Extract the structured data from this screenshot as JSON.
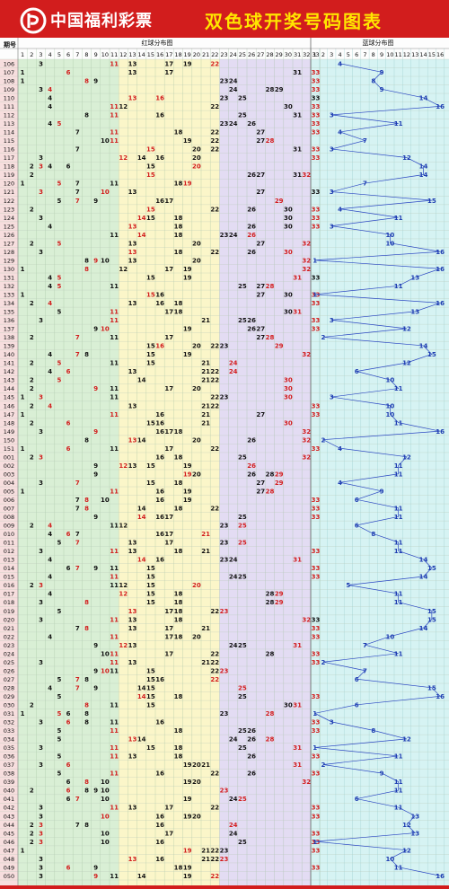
{
  "header": {
    "org_name": "中国福利彩票",
    "title": "双色球开奖号码图表"
  },
  "table": {
    "period_header": "期号",
    "red_zone_title": "红球分布图",
    "blue_zone_title": "蓝球分布图",
    "red_columns": [
      "1",
      "2",
      "3",
      "4",
      "5",
      "6",
      "7",
      "8",
      "9",
      "10",
      "11",
      "12",
      "13",
      "14",
      "15",
      "16",
      "17",
      "18",
      "19",
      "20",
      "21",
      "22",
      "23",
      "24",
      "25",
      "26",
      "27",
      "28",
      "29",
      "30",
      "31",
      "32",
      "33"
    ],
    "blue_columns": [
      "1",
      "2",
      "3",
      "4",
      "5",
      "6",
      "7",
      "8",
      "9",
      "10",
      "11",
      "12",
      "13",
      "14",
      "15",
      "16"
    ],
    "rows": [
      {
        "p": "106",
        "red": [
          3,
          11,
          13,
          17,
          19,
          22
        ],
        "blue": 4
      },
      {
        "p": "107",
        "red": [
          1,
          6,
          13,
          17,
          31,
          33
        ],
        "blue": 9
      },
      {
        "p": "108",
        "red": [
          1,
          8,
          9,
          23,
          24,
          33
        ],
        "blue": 8
      },
      {
        "p": "109",
        "red": [
          3,
          4,
          24,
          28,
          29,
          33
        ],
        "blue": 9
      },
      {
        "p": "110",
        "red": [
          4,
          13,
          23,
          25,
          33,
          16
        ],
        "blue": 14
      },
      {
        "p": "111",
        "red": [
          4,
          11,
          12,
          22,
          30,
          33
        ],
        "blue": 16
      },
      {
        "p": "112",
        "red": [
          8,
          11,
          16,
          25,
          31,
          33
        ],
        "blue": 3
      },
      {
        "p": "113",
        "red": [
          4,
          5,
          23,
          24,
          26,
          33
        ],
        "blue": 11
      },
      {
        "p": "114",
        "red": [
          7,
          11,
          18,
          22,
          27,
          33
        ],
        "blue": 4
      },
      {
        "p": "115",
        "red": [
          10,
          11,
          19,
          22,
          27,
          28
        ],
        "blue": 7
      },
      {
        "p": "116",
        "red": [
          7,
          15,
          20,
          22,
          31,
          33
        ],
        "blue": 3
      },
      {
        "p": "117",
        "red": [
          3,
          12,
          14,
          16,
          20,
          33
        ],
        "blue": 12
      },
      {
        "p": "118",
        "red": [
          2,
          3,
          4,
          6,
          15,
          20
        ],
        "blue": 14
      },
      {
        "p": "119",
        "red": [
          2,
          15,
          26,
          27,
          31,
          32
        ],
        "blue": 14
      },
      {
        "p": "120",
        "red": [
          1,
          5,
          7,
          11,
          18,
          19
        ],
        "blue": 7
      },
      {
        "p": "121",
        "red": [
          7,
          10,
          13,
          27,
          33,
          3
        ],
        "blue": 3
      },
      {
        "p": "122",
        "red": [
          5,
          7,
          9,
          16,
          17,
          29
        ],
        "blue": 15
      },
      {
        "p": "123",
        "red": [
          2,
          15,
          22,
          26,
          30,
          33
        ],
        "blue": 4
      },
      {
        "p": "124",
        "red": [
          3,
          14,
          15,
          18,
          30,
          33
        ],
        "blue": 11
      },
      {
        "p": "125",
        "red": [
          4,
          13,
          18,
          26,
          30,
          33
        ],
        "blue": 3
      },
      {
        "p": "126",
        "red": [
          11,
          14,
          18,
          23,
          24,
          26
        ],
        "blue": 10
      },
      {
        "p": "127",
        "red": [
          2,
          5,
          13,
          20,
          27,
          32
        ],
        "blue": 10
      },
      {
        "p": "128",
        "red": [
          3,
          13,
          18,
          22,
          26,
          30
        ],
        "blue": 16
      },
      {
        "p": "129",
        "red": [
          8,
          9,
          10,
          13,
          20,
          32
        ],
        "blue": 1
      },
      {
        "p": "130",
        "red": [
          1,
          8,
          12,
          17,
          19,
          32
        ],
        "blue": 16
      },
      {
        "p": "131",
        "red": [
          4,
          5,
          15,
          19,
          33,
          31
        ],
        "blue": 13
      },
      {
        "p": "132",
        "red": [
          4,
          5,
          11,
          25,
          27,
          28
        ],
        "blue": 11
      },
      {
        "p": "133",
        "red": [
          1,
          15,
          16,
          27,
          30,
          33
        ],
        "blue": 1
      },
      {
        "p": "134",
        "red": [
          2,
          4,
          13,
          16,
          18,
          33
        ],
        "blue": 16
      },
      {
        "p": "135",
        "red": [
          5,
          11,
          17,
          18,
          30,
          31
        ],
        "blue": 13
      },
      {
        "p": "136",
        "red": [
          3,
          11,
          21,
          25,
          26,
          33
        ],
        "blue": 3
      },
      {
        "p": "137",
        "red": [
          9,
          10,
          19,
          26,
          27,
          33
        ],
        "blue": 12
      },
      {
        "p": "138",
        "red": [
          2,
          7,
          11,
          17,
          27,
          28
        ],
        "blue": 2
      },
      {
        "p": "139",
        "red": [
          15,
          16,
          20,
          22,
          23,
          29
        ],
        "blue": 14
      },
      {
        "p": "140",
        "red": [
          4,
          7,
          8,
          15,
          19,
          32
        ],
        "blue": 15
      },
      {
        "p": "141",
        "red": [
          2,
          5,
          11,
          15,
          21,
          24
        ],
        "blue": 12
      },
      {
        "p": "142",
        "red": [
          4,
          6,
          13,
          21,
          22,
          24
        ],
        "blue": 6
      },
      {
        "p": "143",
        "red": [
          2,
          5,
          14,
          21,
          22,
          30
        ],
        "blue": 10
      },
      {
        "p": "144",
        "red": [
          2,
          9,
          11,
          17,
          20,
          30
        ],
        "blue": 11
      },
      {
        "p": "145",
        "red": [
          1,
          3,
          11,
          22,
          23,
          30
        ],
        "blue": 3
      },
      {
        "p": "146",
        "red": [
          2,
          4,
          13,
          21,
          22,
          33
        ],
        "blue": 10
      },
      {
        "p": "147",
        "red": [
          1,
          11,
          16,
          21,
          27,
          33
        ],
        "blue": 10
      },
      {
        "p": "148",
        "red": [
          2,
          6,
          15,
          16,
          21,
          30
        ],
        "blue": 11
      },
      {
        "p": "149",
        "red": [
          3,
          9,
          16,
          17,
          18,
          32
        ],
        "blue": 16
      },
      {
        "p": "150",
        "red": [
          8,
          13,
          14,
          20,
          26,
          32
        ],
        "blue": 2
      },
      {
        "p": "151",
        "red": [
          1,
          6,
          11,
          17,
          22,
          33
        ],
        "blue": 4
      },
      {
        "p": "001",
        "red": [
          2,
          3,
          16,
          18,
          25,
          32
        ],
        "blue": 12
      },
      {
        "p": "002",
        "red": [
          9,
          12,
          13,
          15,
          19,
          26
        ],
        "blue": 11
      },
      {
        "p": "003",
        "red": [
          9,
          19,
          20,
          26,
          28,
          29
        ],
        "blue": 11
      },
      {
        "p": "004",
        "red": [
          3,
          7,
          15,
          18,
          27,
          29
        ],
        "blue": 4
      },
      {
        "p": "005",
        "red": [
          1,
          11,
          16,
          19,
          27,
          28
        ],
        "blue": 9
      },
      {
        "p": "006",
        "red": [
          7,
          8,
          10,
          16,
          19,
          33
        ],
        "blue": 6
      },
      {
        "p": "007",
        "red": [
          7,
          8,
          14,
          18,
          22,
          33
        ],
        "blue": 11
      },
      {
        "p": "008",
        "red": [
          9,
          14,
          16,
          17,
          25,
          33
        ],
        "blue": 11
      },
      {
        "p": "009",
        "red": [
          2,
          4,
          11,
          12,
          23,
          25
        ],
        "blue": 6
      },
      {
        "p": "010",
        "red": [
          4,
          6,
          7,
          16,
          17,
          21
        ],
        "blue": 8
      },
      {
        "p": "011",
        "red": [
          5,
          7,
          13,
          17,
          23,
          25
        ],
        "blue": 11
      },
      {
        "p": "012",
        "red": [
          3,
          11,
          13,
          18,
          21,
          33
        ],
        "blue": 11
      },
      {
        "p": "013",
        "red": [
          4,
          14,
          16,
          23,
          24,
          31
        ],
        "blue": 14
      },
      {
        "p": "014",
        "red": [
          6,
          7,
          9,
          11,
          15,
          33
        ],
        "blue": 15
      },
      {
        "p": "015",
        "red": [
          4,
          11,
          15,
          24,
          25,
          33
        ],
        "blue": 14
      },
      {
        "p": "016",
        "red": [
          2,
          3,
          11,
          12,
          15,
          20
        ],
        "blue": 5
      },
      {
        "p": "017",
        "red": [
          4,
          12,
          15,
          18,
          28,
          29
        ],
        "blue": 11
      },
      {
        "p": "018",
        "red": [
          3,
          8,
          15,
          18,
          28,
          29
        ],
        "blue": 11
      },
      {
        "p": "019",
        "red": [
          5,
          13,
          17,
          18,
          22,
          23
        ],
        "blue": 15
      },
      {
        "p": "020",
        "red": [
          3,
          11,
          13,
          18,
          33,
          32
        ],
        "blue": 15
      },
      {
        "p": "021",
        "red": [
          7,
          8,
          13,
          17,
          21,
          33
        ],
        "blue": 14
      },
      {
        "p": "022",
        "red": [
          4,
          11,
          17,
          18,
          20,
          33
        ],
        "blue": 10
      },
      {
        "p": "023",
        "red": [
          9,
          12,
          13,
          24,
          25,
          31
        ],
        "blue": 7
      },
      {
        "p": "024",
        "red": [
          10,
          11,
          17,
          22,
          28,
          33
        ],
        "blue": 11
      },
      {
        "p": "025",
        "red": [
          3,
          11,
          13,
          21,
          22,
          33
        ],
        "blue": 2
      },
      {
        "p": "026",
        "red": [
          9,
          10,
          11,
          15,
          22,
          23
        ],
        "blue": 7
      },
      {
        "p": "027",
        "red": [
          5,
          7,
          8,
          15,
          16,
          22
        ],
        "blue": 6
      },
      {
        "p": "028",
        "red": [
          4,
          7,
          9,
          14,
          15,
          25
        ],
        "blue": 15
      },
      {
        "p": "029",
        "red": [
          5,
          14,
          15,
          18,
          25,
          33
        ],
        "blue": 16
      },
      {
        "p": "030",
        "red": [
          2,
          8,
          11,
          15,
          30,
          31
        ],
        "blue": 6
      },
      {
        "p": "031",
        "red": [
          1,
          5,
          6,
          8,
          23,
          28
        ],
        "blue": 1
      },
      {
        "p": "032",
        "red": [
          3,
          6,
          8,
          11,
          16,
          33
        ],
        "blue": 3
      },
      {
        "p": "033",
        "red": [
          5,
          11,
          18,
          25,
          26,
          33
        ],
        "blue": 8
      },
      {
        "p": "034",
        "red": [
          5,
          13,
          14,
          24,
          26,
          28
        ],
        "blue": 12
      },
      {
        "p": "035",
        "red": [
          3,
          11,
          15,
          18,
          25,
          31
        ],
        "blue": 1
      },
      {
        "p": "036",
        "red": [
          5,
          11,
          13,
          18,
          26,
          33
        ],
        "blue": 11
      },
      {
        "p": "037",
        "red": [
          3,
          6,
          19,
          20,
          21,
          31
        ],
        "blue": 2
      },
      {
        "p": "038",
        "red": [
          5,
          11,
          16,
          22,
          26,
          33
        ],
        "blue": 9
      },
      {
        "p": "039",
        "red": [
          6,
          8,
          10,
          19,
          20,
          32
        ],
        "blue": 11
      },
      {
        "p": "040",
        "red": [
          2,
          6,
          8,
          9,
          10,
          23
        ],
        "blue": 11
      },
      {
        "p": "041",
        "red": [
          6,
          7,
          10,
          19,
          24,
          25
        ],
        "blue": 6
      },
      {
        "p": "042",
        "red": [
          3,
          11,
          13,
          17,
          22,
          33
        ],
        "blue": 11
      },
      {
        "p": "043",
        "red": [
          3,
          10,
          16,
          19,
          20,
          33
        ],
        "blue": 13
      },
      {
        "p": "044",
        "red": [
          2,
          3,
          7,
          8,
          16,
          24
        ],
        "blue": 12
      },
      {
        "p": "045",
        "red": [
          2,
          3,
          10,
          17,
          24,
          33
        ],
        "blue": 13
      },
      {
        "p": "046",
        "red": [
          2,
          3,
          10,
          16,
          25,
          33
        ],
        "blue": 1
      },
      {
        "p": "047",
        "red": [
          1,
          19,
          21,
          22,
          23,
          33
        ],
        "blue": 12
      },
      {
        "p": "048",
        "red": [
          3,
          13,
          16,
          21,
          22,
          23
        ],
        "blue": 10
      },
      {
        "p": "049",
        "red": [
          3,
          6,
          9,
          18,
          19,
          33
        ],
        "blue": 11
      },
      {
        "p": "050",
        "red": [
          3,
          9,
          11,
          14,
          19,
          22
        ],
        "blue": 16
      }
    ]
  },
  "colors": {
    "frame": "#d21d1d",
    "title": "#ffe600",
    "zone1": "#d9efd5",
    "zone2": "#fbf6c9",
    "zone3": "#e3dcf3",
    "blue_zone": "#d6f3f3",
    "period_col": "#f7dede",
    "red_number": "#d21d1d",
    "black_number": "#111111",
    "blue_number": "#1c3bb0"
  },
  "icons": {
    "logo": "welfare-lottery-logo-icon"
  }
}
